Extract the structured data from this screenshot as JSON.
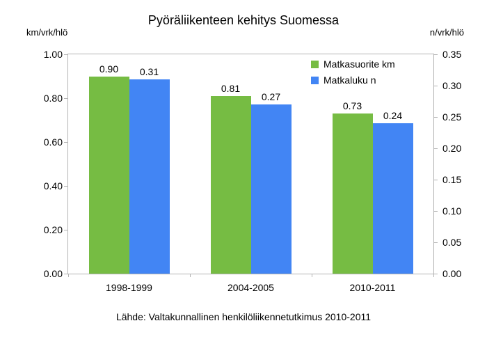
{
  "chart_data": {
    "type": "bar",
    "title": "Pyöräliikenteen kehitys Suomessa",
    "categories": [
      "1998-1999",
      "2004-2005",
      "2010-2011"
    ],
    "series": [
      {
        "name": "Matkasuorite km",
        "axis": "left",
        "color": "#76BC43",
        "values": [
          0.9,
          0.81,
          0.73
        ]
      },
      {
        "name": "Matkaluku n",
        "axis": "right",
        "color": "#4285F4",
        "values": [
          0.31,
          0.27,
          0.24
        ]
      }
    ],
    "left_axis": {
      "label": "km/vrk/hlö",
      "min": 0,
      "max": 1.0,
      "step": 0.2
    },
    "right_axis": {
      "label": "n/vrk/hlö",
      "min": 0,
      "max": 0.35,
      "step": 0.05
    },
    "source": "Lähde: Valtakunnallinen henkilöliikennetutkimus 2010-2011",
    "grid": false,
    "legend_position": "top-right-inside",
    "axis_line_color": "#b3b3b3",
    "text_color": "#000000",
    "background_color": "#ffffff"
  }
}
